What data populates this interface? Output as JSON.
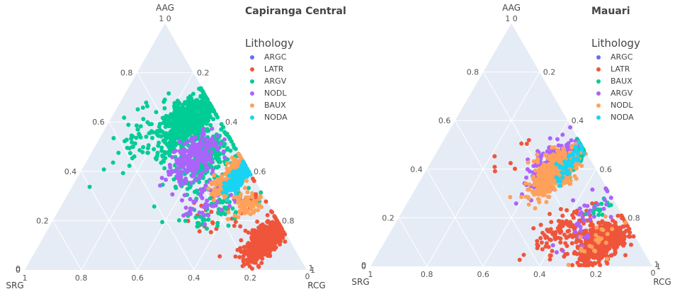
{
  "chart_data": [
    {
      "type": "scatter",
      "subtype": "ternary",
      "title": "Capiranga Central",
      "axes": {
        "a": {
          "title": "AAG",
          "ticks": [
            "0",
            "0.2",
            "0.4",
            "0.6",
            "0.8",
            "1 0"
          ],
          "range": [
            0,
            1
          ]
        },
        "b": {
          "title": "SRG",
          "ticks": [
            "1",
            "0.8",
            "0.6",
            "0.4",
            "0.2",
            "0"
          ],
          "range": [
            0,
            1
          ]
        },
        "c": {
          "title": "RCG",
          "ticks": [
            "0",
            "0.2",
            "0.4",
            "0.6",
            "0.8",
            "1"
          ],
          "range": [
            0,
            1
          ]
        }
      },
      "grid": true,
      "legend": {
        "title": "Lithology",
        "position": "top-right"
      },
      "series": [
        {
          "name": "ARGC",
          "color": "#636efa",
          "clusters": []
        },
        {
          "name": "LATR",
          "color": "#ef553b",
          "clusters": [
            {
              "a": 0.12,
              "c": 0.79,
              "spread_a": 0.07,
              "spread_c": 0.05,
              "n": 520
            },
            {
              "a": 0.25,
              "c": 0.6,
              "spread_a": 0.09,
              "spread_c": 0.12,
              "n": 45
            }
          ]
        },
        {
          "name": "ARGV",
          "color": "#00cc96",
          "clusters": [
            {
              "a": 0.6,
              "c": 0.28,
              "spread_a": 0.1,
              "spread_c": 0.07,
              "n": 650
            },
            {
              "a": 0.45,
              "c": 0.42,
              "spread_a": 0.1,
              "spread_c": 0.07,
              "n": 260
            },
            {
              "a": 0.55,
              "c": 0.14,
              "spread_a": 0.12,
              "spread_c": 0.07,
              "n": 55
            },
            {
              "a": 0.25,
              "c": 0.55,
              "spread_a": 0.08,
              "spread_c": 0.1,
              "n": 70
            }
          ]
        },
        {
          "name": "NODL",
          "color": "#ab63fa",
          "clusters": [
            {
              "a": 0.45,
              "c": 0.38,
              "spread_a": 0.08,
              "spread_c": 0.06,
              "n": 220
            },
            {
              "a": 0.28,
              "c": 0.5,
              "spread_a": 0.08,
              "spread_c": 0.12,
              "n": 55
            }
          ]
        },
        {
          "name": "BAUX",
          "color": "#ffa15a",
          "clusters": [
            {
              "a": 0.38,
              "c": 0.55,
              "spread_a": 0.07,
              "spread_c": 0.04,
              "n": 260
            },
            {
              "a": 0.27,
              "c": 0.66,
              "spread_a": 0.04,
              "spread_c": 0.04,
              "n": 60
            }
          ]
        },
        {
          "name": "NODA",
          "color": "#19d3f3",
          "clusters": [
            {
              "a": 0.37,
              "c": 0.57,
              "spread_a": 0.045,
              "spread_c": 0.025,
              "n": 220
            }
          ]
        }
      ]
    },
    {
      "type": "scatter",
      "subtype": "ternary",
      "title": "Mauari",
      "axes": {
        "a": {
          "title": "AAG",
          "ticks": [
            "0",
            "0.2",
            "0.4",
            "0.6",
            "0.8",
            "1 0"
          ],
          "range": [
            0,
            1
          ]
        },
        "b": {
          "title": "SRG",
          "ticks": [
            "1",
            "0.8",
            "0.6",
            "0.4",
            "0.2",
            "0"
          ],
          "range": [
            0,
            1
          ]
        },
        "c": {
          "title": "RCG",
          "ticks": [
            "0",
            "0.2",
            "0.4",
            "0.6",
            "0.8",
            "1"
          ],
          "range": [
            0,
            1
          ]
        }
      },
      "grid": true,
      "legend": {
        "title": "Lithology",
        "position": "top-right"
      },
      "series": [
        {
          "name": "ARGC",
          "color": "#636efa",
          "clusters": []
        },
        {
          "name": "LATR",
          "color": "#ef553b",
          "clusters": [
            {
              "a": 0.1,
              "c": 0.77,
              "spread_a": 0.07,
              "spread_c": 0.06,
              "n": 560
            },
            {
              "a": 0.15,
              "c": 0.62,
              "spread_a": 0.08,
              "spread_c": 0.08,
              "n": 120
            },
            {
              "a": 0.45,
              "c": 0.3,
              "spread_a": 0.1,
              "spread_c": 0.08,
              "n": 8
            }
          ]
        },
        {
          "name": "BAUX",
          "color": "#00cc96",
          "clusters": [
            {
              "a": 0.45,
              "c": 0.5,
              "spread_a": 0.07,
              "spread_c": 0.02,
              "n": 200
            },
            {
              "a": 0.25,
              "c": 0.7,
              "spread_a": 0.07,
              "spread_c": 0.03,
              "n": 15
            }
          ]
        },
        {
          "name": "ARGV",
          "color": "#ab63fa",
          "clusters": [
            {
              "a": 0.42,
              "c": 0.43,
              "spread_a": 0.08,
              "spread_c": 0.05,
              "n": 230
            },
            {
              "a": 0.2,
              "c": 0.68,
              "spread_a": 0.1,
              "spread_c": 0.05,
              "n": 40
            }
          ]
        },
        {
          "name": "NODL",
          "color": "#ffa15a",
          "clusters": [
            {
              "a": 0.38,
              "c": 0.46,
              "spread_a": 0.08,
              "spread_c": 0.06,
              "n": 420
            },
            {
              "a": 0.1,
              "c": 0.75,
              "spread_a": 0.06,
              "spread_c": 0.06,
              "n": 25
            }
          ]
        },
        {
          "name": "NODA",
          "color": "#19d3f3",
          "clusters": [
            {
              "a": 0.42,
              "c": 0.5,
              "spread_a": 0.07,
              "spread_c": 0.025,
              "n": 50
            }
          ]
        }
      ]
    }
  ]
}
